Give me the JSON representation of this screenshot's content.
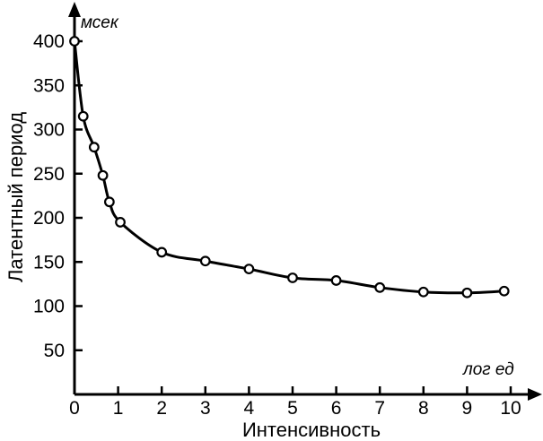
{
  "chart_data": {
    "type": "line",
    "title": "",
    "xlabel": "Интенсивность",
    "ylabel": "Латентный период",
    "x_unit": "лог ед",
    "y_unit": "мсек",
    "xlim": [
      0,
      10
    ],
    "ylim": [
      0,
      400
    ],
    "x_ticks": [
      0,
      1,
      2,
      3,
      4,
      5,
      6,
      7,
      8,
      9,
      10
    ],
    "y_ticks": [
      50,
      100,
      150,
      200,
      250,
      300,
      350,
      400
    ],
    "grid": false,
    "legend": "none",
    "series": [
      {
        "x": [
          0.0,
          0.2,
          0.45,
          0.65,
          0.8,
          1.05,
          2.0,
          3.0,
          4.0,
          5.0,
          6.0,
          7.0,
          8.0,
          9.0,
          9.85
        ],
        "values": [
          400,
          315,
          280,
          248,
          218,
          195,
          161,
          151,
          142,
          132,
          129,
          121,
          116,
          115,
          117
        ]
      }
    ]
  }
}
